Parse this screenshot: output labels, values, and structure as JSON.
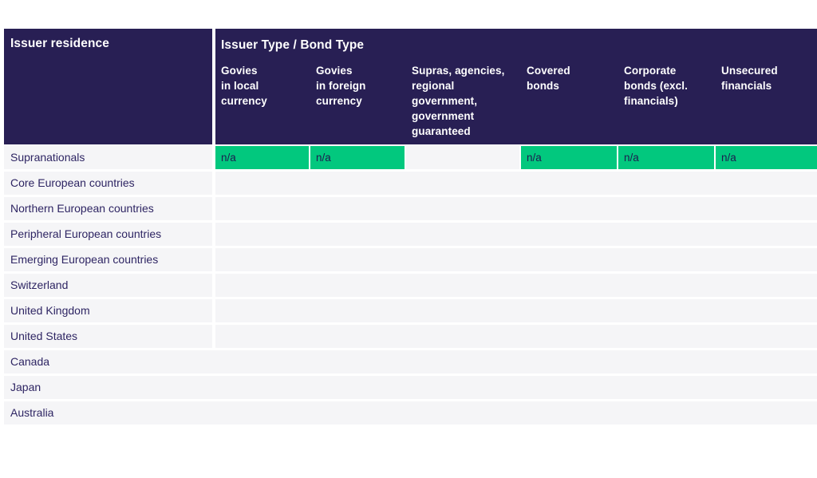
{
  "colors": {
    "header_navy": "#281f54",
    "highlight_green": "#02c87e",
    "row_bg": "#f5f5f7",
    "row_text": "#2e2563",
    "na_text": "#1e1b4f",
    "header_text": "#ffffff"
  },
  "table": {
    "left_header": "Issuer residence",
    "group_header": "Issuer Type / Bond Type",
    "columns": [
      {
        "id": "govies-local-currency",
        "label": "Govies\nin local\ncurrency"
      },
      {
        "id": "govies-foreign-currency",
        "label": "Govies\nin foreign\ncurrency"
      },
      {
        "id": "supras-agencies",
        "label": "Supras, agencies,\nregional\ngovernment,\ngovernment\nguaranteed"
      },
      {
        "id": "covered-bonds",
        "label": "Covered\nbonds"
      },
      {
        "id": "corporate-bonds",
        "label": "Corporate\nbonds (excl.\nfinancials)"
      },
      {
        "id": "unsecured-financials",
        "label": "Unsecured\nfinancials"
      }
    ],
    "rows": [
      {
        "label": "Supranationals",
        "divider": true,
        "cells": [
          {
            "text": "n/a",
            "highlight": true
          },
          {
            "text": "n/a",
            "highlight": true
          },
          {
            "text": "",
            "highlight": false
          },
          {
            "text": "n/a",
            "highlight": true
          },
          {
            "text": "n/a",
            "highlight": true
          },
          {
            "text": "n/a",
            "highlight": true
          }
        ]
      },
      {
        "label": "Core European countries",
        "divider": true,
        "cells": null
      },
      {
        "label": "Northern European countries",
        "divider": true,
        "cells": null
      },
      {
        "label": "Peripheral European countries",
        "divider": true,
        "cells": null
      },
      {
        "label": "Emerging European countries",
        "divider": true,
        "cells": null
      },
      {
        "label": "Switzerland",
        "divider": true,
        "cells": null
      },
      {
        "label": "United Kingdom",
        "divider": true,
        "cells": null
      },
      {
        "label": "United States",
        "divider": true,
        "cells": null
      },
      {
        "label": "Canada",
        "divider": false,
        "cells": null
      },
      {
        "label": "Japan",
        "divider": false,
        "cells": null
      },
      {
        "label": "Australia",
        "divider": false,
        "cells": null
      }
    ]
  },
  "chart_data": {
    "type": "table",
    "title": "Issuer Type / Bond Type",
    "row_header": "Issuer residence",
    "columns": [
      "Govies in local currency",
      "Govies in foreign currency",
      "Supras, agencies, regional government, government guaranteed",
      "Covered bonds",
      "Corporate bonds (excl. financials)",
      "Unsecured financials"
    ],
    "row_labels": [
      "Supranationals",
      "Core European countries",
      "Northern European countries",
      "Peripheral European countries",
      "Emerging European countries",
      "Switzerland",
      "United Kingdom",
      "United States",
      "Canada",
      "Japan",
      "Australia"
    ],
    "values": [
      [
        "n/a",
        "n/a",
        "",
        "n/a",
        "n/a",
        "n/a"
      ],
      [
        "",
        "",
        "",
        "",
        "",
        ""
      ],
      [
        "",
        "",
        "",
        "",
        "",
        ""
      ],
      [
        "",
        "",
        "",
        "",
        "",
        ""
      ],
      [
        "",
        "",
        "",
        "",
        "",
        ""
      ],
      [
        "",
        "",
        "",
        "",
        "",
        ""
      ],
      [
        "",
        "",
        "",
        "",
        "",
        ""
      ],
      [
        "",
        "",
        "",
        "",
        "",
        ""
      ],
      [
        "",
        "",
        "",
        "",
        "",
        ""
      ],
      [
        "",
        "",
        "",
        "",
        "",
        ""
      ],
      [
        "",
        "",
        "",
        "",
        "",
        ""
      ]
    ],
    "highlighted_cells_color": "#02c87e",
    "legend_position": "none",
    "grid": false
  }
}
